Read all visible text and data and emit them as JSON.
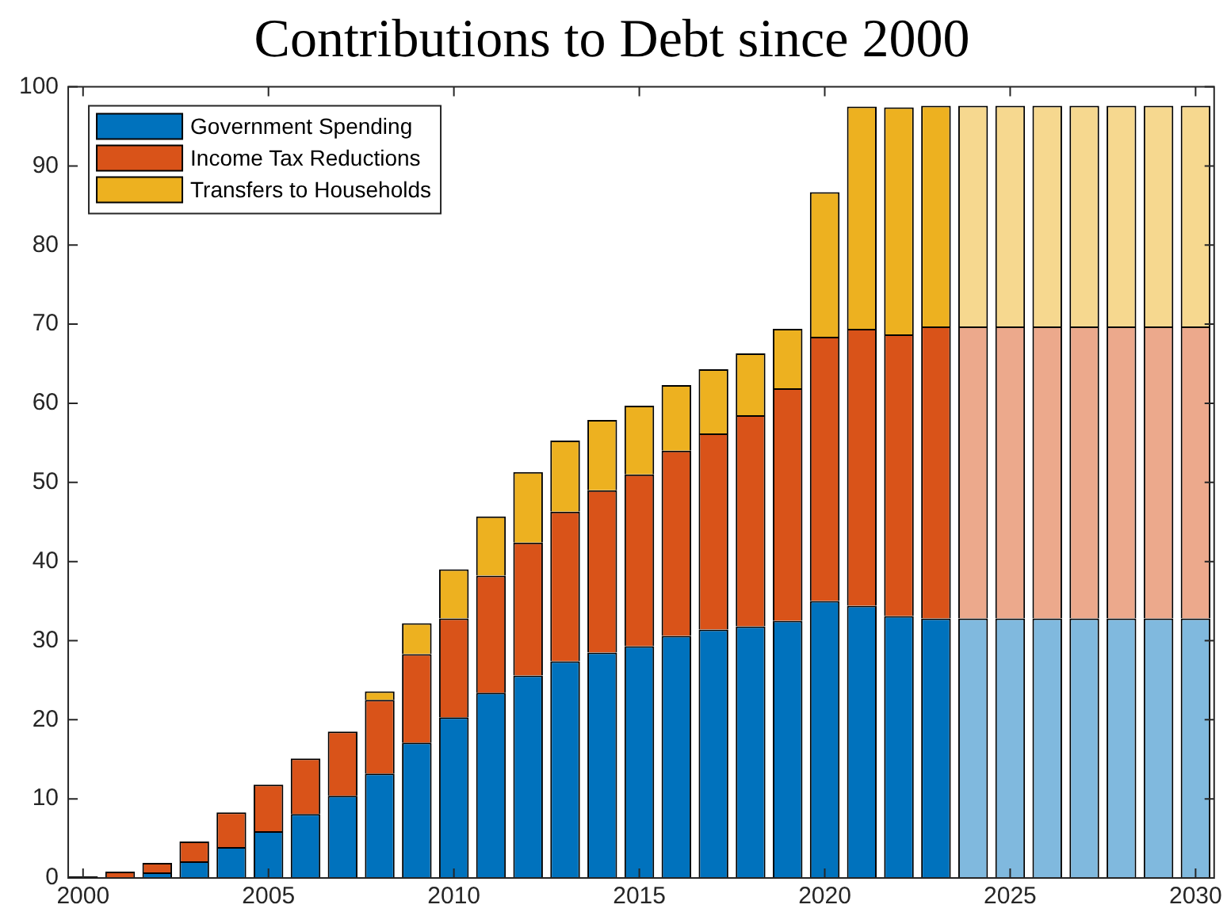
{
  "chart_data": {
    "type": "bar",
    "title": "Contributions to Debt since 2000",
    "stacked": true,
    "x": [
      2000,
      2001,
      2002,
      2003,
      2004,
      2005,
      2006,
      2007,
      2008,
      2009,
      2010,
      2011,
      2012,
      2013,
      2014,
      2015,
      2016,
      2017,
      2018,
      2019,
      2020,
      2021,
      2022,
      2023,
      2024,
      2025,
      2026,
      2027,
      2028,
      2029,
      2030
    ],
    "series": [
      {
        "name": "Government Spending",
        "color": "#0072bd",
        "colors": [
          "#0072bd",
          "#0072bd",
          "#0072bd",
          "#0072bd",
          "#0072bd",
          "#0072bd",
          "#0072bd",
          "#0072bd",
          "#0072bd",
          "#0072bd",
          "#0072bd",
          "#0072bd",
          "#0072bd",
          "#0072bd",
          "#0072bd",
          "#0072bd",
          "#0072bd",
          "#0072bd",
          "#0072bd",
          "#0072bd",
          "#0072bd",
          "#0072bd",
          "#0072bd",
          "#0072bd",
          "#80b9de",
          "#80b9de",
          "#80b9de",
          "#80b9de",
          "#80b9de",
          "#80b9de",
          "#80b9de"
        ],
        "values": [
          0.2,
          0,
          0.7,
          2.1,
          3.9,
          5.9,
          8.1,
          10.4,
          13.2,
          17.1,
          20.3,
          23.4,
          25.6,
          27.4,
          28.5,
          29.3,
          30.6,
          31.4,
          31.8,
          32.5,
          35.0,
          34.4,
          33.1,
          32.8,
          32.8,
          32.8,
          32.8,
          32.8,
          32.8,
          32.8,
          32.8
        ]
      },
      {
        "name": "Income Tax Reductions",
        "color": "#d95319",
        "colors": [
          "#d95319",
          "#d95319",
          "#d95319",
          "#d95319",
          "#d95319",
          "#d95319",
          "#d95319",
          "#d95319",
          "#d95319",
          "#d95319",
          "#d95319",
          "#d95319",
          "#d95319",
          "#d95319",
          "#d95319",
          "#d95319",
          "#d95319",
          "#d95319",
          "#d95319",
          "#d95319",
          "#d95319",
          "#d95319",
          "#d95319",
          "#d95319",
          "#eca98c",
          "#eca98c",
          "#eca98c",
          "#eca98c",
          "#eca98c",
          "#eca98c",
          "#eca98c"
        ],
        "values": [
          0,
          0.8,
          1.2,
          2.5,
          4.4,
          5.9,
          7.0,
          8.1,
          9.3,
          11.2,
          12.5,
          14.8,
          16.8,
          18.9,
          20.5,
          21.7,
          23.4,
          24.8,
          26.7,
          29.4,
          33.4,
          35.0,
          35.6,
          36.9,
          36.9,
          36.9,
          36.9,
          36.9,
          36.9,
          36.9,
          36.9
        ]
      },
      {
        "name": "Transfers to Households",
        "color": "#edb120",
        "colors": [
          "#edb120",
          "#edb120",
          "#edb120",
          "#edb120",
          "#edb120",
          "#edb120",
          "#edb120",
          "#edb120",
          "#edb120",
          "#edb120",
          "#edb120",
          "#edb120",
          "#edb120",
          "#edb120",
          "#edb120",
          "#edb120",
          "#edb120",
          "#edb120",
          "#edb120",
          "#edb120",
          "#edb120",
          "#edb120",
          "#edb120",
          "#edb120",
          "#f6d88f",
          "#f6d88f",
          "#f6d88f",
          "#f6d88f",
          "#f6d88f",
          "#f6d88f",
          "#f6d88f"
        ],
        "values": [
          0,
          0,
          0,
          0,
          0,
          0,
          0,
          0,
          1.1,
          3.9,
          6.2,
          7.5,
          8.9,
          9.0,
          8.9,
          8.7,
          8.3,
          8.1,
          7.8,
          7.5,
          18.3,
          28.1,
          28.7,
          27.9,
          27.9,
          27.9,
          27.9,
          27.9,
          27.9,
          27.9,
          27.9
        ]
      }
    ],
    "xlim": [
      1999.6,
      2030.5
    ],
    "xticks": [
      2000,
      2005,
      2010,
      2015,
      2020,
      2025,
      2030
    ],
    "ylim": [
      0,
      100
    ],
    "yticks": [
      0,
      10,
      20,
      30,
      40,
      50,
      60,
      70,
      80,
      90,
      100
    ],
    "legend": "top left"
  }
}
